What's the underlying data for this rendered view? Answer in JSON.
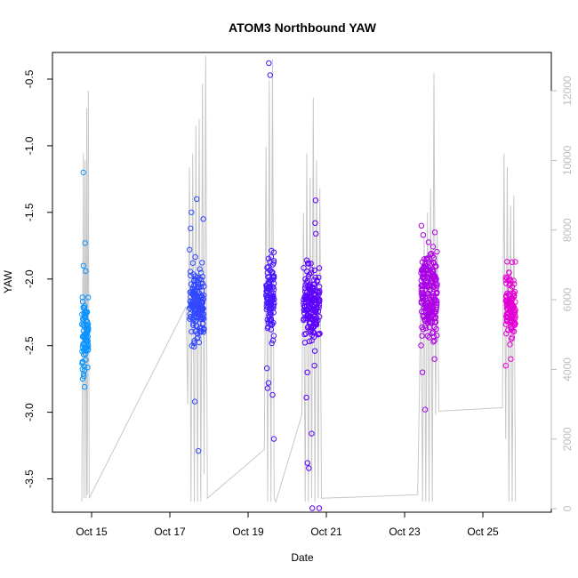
{
  "chart_data": {
    "type": "scatter",
    "title": "ATOM3 Northbound YAW",
    "xlabel": "Date",
    "ylabel": "YAW",
    "x_ticks": [
      "Oct 15",
      "Oct 17",
      "Oct 19",
      "Oct 21",
      "Oct 23",
      "Oct 25"
    ],
    "y_ticks": [
      "-3.5",
      "-3.0",
      "-2.5",
      "-2.0",
      "-1.5",
      "-1.0",
      "-0.5"
    ],
    "y2_ticks": [
      "0",
      "2000",
      "4000",
      "6000",
      "8000",
      "10000",
      "12000"
    ],
    "xlim": [
      "2014-10-14 00:00",
      "2014-10-26 18:00"
    ],
    "ylim": [
      -3.75,
      -0.3
    ],
    "y2lim": [
      -100,
      13100
    ],
    "grid": false,
    "colors": {
      "points_start": "#00aaff",
      "points_mid": "#5500ff",
      "points_end": "#ff00cc",
      "secondary_series": "#c8c8c8",
      "secondary_axis": "#bdbdbd"
    },
    "clusters": [
      {
        "start": "2014-10-14 18:00",
        "end": "2014-10-14 22:00",
        "yaw_mean": -2.42,
        "yaw_sd": 0.15,
        "n": 85,
        "outliers": [
          -1.2,
          -1.73,
          -1.94,
          -1.9,
          -2.17,
          -2.81,
          -2.75
        ]
      },
      {
        "start": "2014-10-17 12:00",
        "end": "2014-10-17 21:00",
        "yaw_mean": -2.2,
        "yaw_sd": 0.14,
        "n": 170,
        "outliers": [
          -1.4,
          -1.5,
          -1.55,
          -1.62,
          -1.78,
          -1.88,
          -2.92,
          -3.29
        ]
      },
      {
        "start": "2014-10-19 11:00",
        "end": "2014-10-19 16:00",
        "yaw_mean": -2.12,
        "yaw_sd": 0.15,
        "n": 120,
        "outliers": [
          -0.38,
          -0.47,
          -2.67,
          -2.78,
          -2.82,
          -2.87,
          -3.2
        ]
      },
      {
        "start": "2014-10-20 10:00",
        "end": "2014-10-20 20:00",
        "yaw_mean": -2.2,
        "yaw_sd": 0.15,
        "n": 170,
        "outliers": [
          -1.41,
          -1.58,
          -1.66,
          -2.65,
          -2.7,
          -2.89,
          -3.16,
          -3.38,
          -3.42,
          -3.72,
          -3.72
        ]
      },
      {
        "start": "2014-10-23 10:00",
        "end": "2014-10-23 20:00",
        "yaw_mean": -2.12,
        "yaw_sd": 0.17,
        "n": 200,
        "outliers": [
          -1.6,
          -1.65,
          -2.6,
          -2.7,
          -2.98
        ]
      },
      {
        "start": "2014-10-25 14:00",
        "end": "2014-10-25 20:00",
        "yaw_mean": -2.22,
        "yaw_sd": 0.12,
        "n": 120,
        "outliers": [
          -1.95,
          -2.6,
          -2.65,
          -2.45
        ]
      }
    ],
    "secondary_series": {
      "points": [
        [
          "2014-10-14 18:00",
          200
        ],
        [
          "2014-10-14 19:00",
          10200
        ],
        [
          "2014-10-14 19:20",
          300
        ],
        [
          "2014-10-14 20:00",
          10000
        ],
        [
          "2014-10-14 20:40",
          300
        ],
        [
          "2014-10-14 21:00",
          11500
        ],
        [
          "2014-10-14 21:20",
          400
        ],
        [
          "2014-10-14 22:00",
          12000
        ],
        [
          "2014-10-14 22:30",
          300
        ],
        [
          "2014-10-17 10:00",
          5800
        ],
        [
          "2014-10-17 11:00",
          3000
        ],
        [
          "2014-10-17 12:00",
          9800
        ],
        [
          "2014-10-17 13:00",
          200
        ],
        [
          "2014-10-17 14:00",
          10200
        ],
        [
          "2014-10-17 15:00",
          200
        ],
        [
          "2014-10-17 16:00",
          11000
        ],
        [
          "2014-10-17 17:00",
          200
        ],
        [
          "2014-10-17 18:00",
          11200
        ],
        [
          "2014-10-17 19:00",
          200
        ],
        [
          "2014-10-17 20:00",
          12200
        ],
        [
          "2014-10-17 21:00",
          1000
        ],
        [
          "2014-10-17 22:00",
          13000
        ],
        [
          "2014-10-17 23:00",
          300
        ],
        [
          "2014-10-19 10:00",
          1700
        ],
        [
          "2014-10-19 11:00",
          10400
        ],
        [
          "2014-10-19 12:00",
          200
        ],
        [
          "2014-10-19 13:00",
          12300
        ],
        [
          "2014-10-19 14:00",
          200
        ],
        [
          "2014-10-19 15:00",
          12900
        ],
        [
          "2014-10-19 16:00",
          300
        ],
        [
          "2014-10-19 17:00",
          200
        ],
        [
          "2014-10-20 09:00",
          2700
        ],
        [
          "2014-10-20 10:00",
          8500
        ],
        [
          "2014-10-20 11:00",
          200
        ],
        [
          "2014-10-20 12:00",
          10200
        ],
        [
          "2014-10-20 13:00",
          200
        ],
        [
          "2014-10-20 14:00",
          9500
        ],
        [
          "2014-10-20 15:00",
          300
        ],
        [
          "2014-10-20 16:00",
          11800
        ],
        [
          "2014-10-20 17:00",
          200
        ],
        [
          "2014-10-20 18:00",
          10000
        ],
        [
          "2014-10-20 19:00",
          300
        ],
        [
          "2014-10-20 20:00",
          9200
        ],
        [
          "2014-10-20 21:00",
          300
        ],
        [
          "2014-10-23 08:00",
          400
        ],
        [
          "2014-10-23 09:00",
          3100
        ],
        [
          "2014-10-23 10:00",
          6500
        ],
        [
          "2014-10-23 11:00",
          200
        ],
        [
          "2014-10-23 12:00",
          7800
        ],
        [
          "2014-10-23 13:00",
          200
        ],
        [
          "2014-10-23 14:00",
          8500
        ],
        [
          "2014-10-23 15:00",
          200
        ],
        [
          "2014-10-23 16:00",
          9200
        ],
        [
          "2014-10-23 17:00",
          200
        ],
        [
          "2014-10-23 18:00",
          12500
        ],
        [
          "2014-10-23 19:00",
          2700
        ],
        [
          "2014-10-23 20:00",
          8000
        ],
        [
          "2014-10-23 21:00",
          2800
        ],
        [
          "2014-10-25 12:00",
          2900
        ],
        [
          "2014-10-25 13:00",
          10200
        ],
        [
          "2014-10-25 14:00",
          2000
        ],
        [
          "2014-10-25 15:00",
          9800
        ],
        [
          "2014-10-25 16:00",
          200
        ],
        [
          "2014-10-25 17:00",
          8700
        ],
        [
          "2014-10-25 18:00",
          200
        ],
        [
          "2014-10-25 19:00",
          9000
        ],
        [
          "2014-10-25 20:00",
          200
        ]
      ]
    }
  }
}
